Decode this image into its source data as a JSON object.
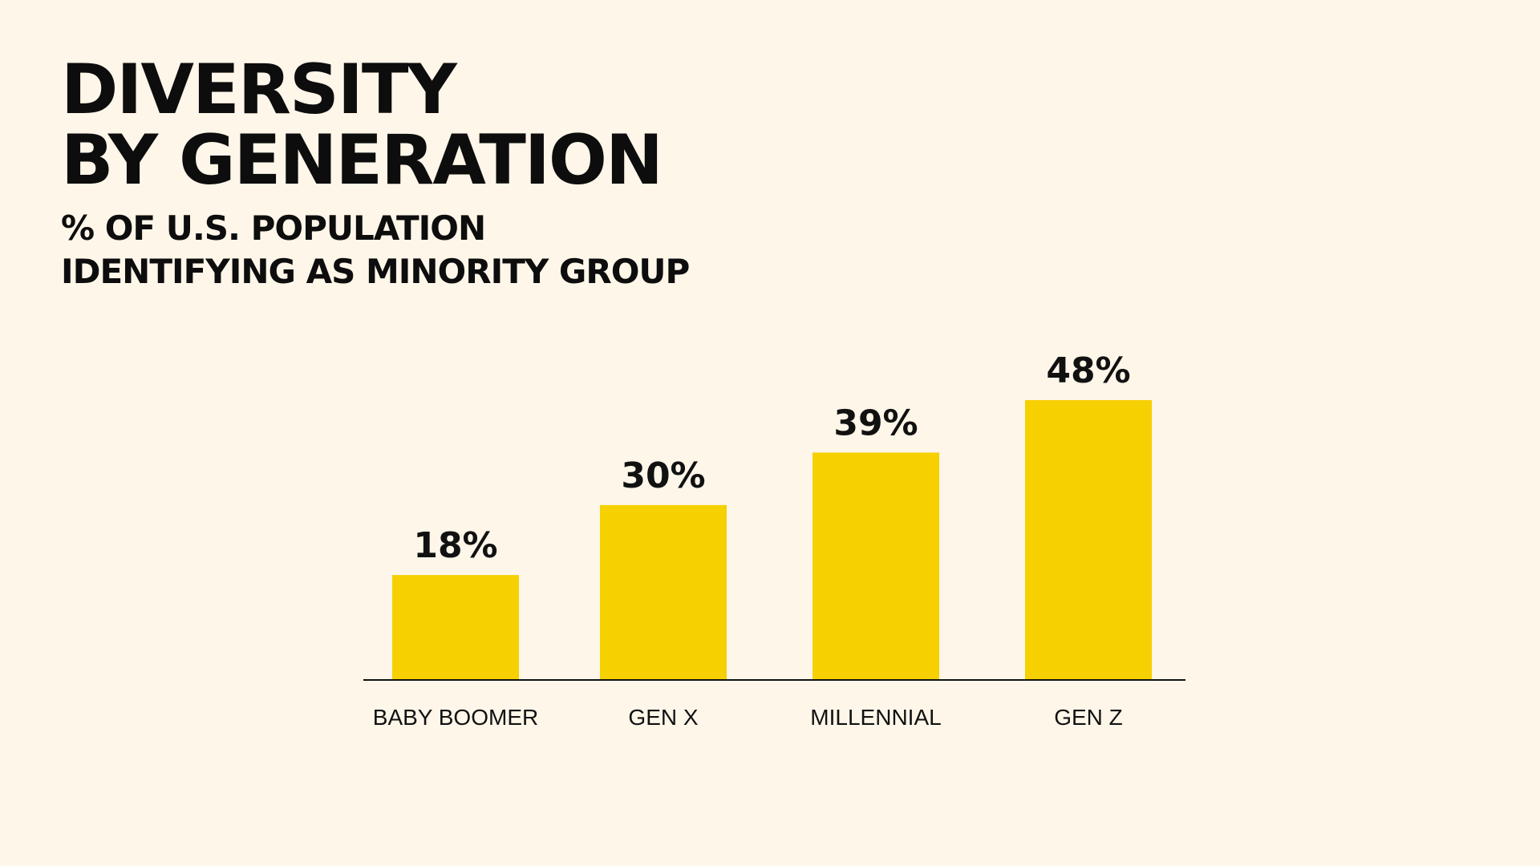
{
  "header": {
    "title_lines": [
      "DIVERSITY",
      "BY GENERATION"
    ],
    "subtitle_lines": [
      "% OF U.S. POPULATION",
      "IDENTIFYING AS MINORITY GROUP"
    ]
  },
  "colors": {
    "background": "#fdf6e9",
    "bar": "#f6d000",
    "text": "#111111",
    "axis": "#111111"
  },
  "chart_data": {
    "type": "bar",
    "title": "DIVERSITY BY GENERATION",
    "subtitle": "% OF U.S. POPULATION IDENTIFYING AS MINORITY GROUP",
    "categories": [
      "BABY BOOMER",
      "GEN X",
      "MILLENNIAL",
      "GEN Z"
    ],
    "values": [
      18,
      30,
      39,
      48
    ],
    "value_labels": [
      "18%",
      "30%",
      "39%",
      "48%"
    ],
    "xlabel": "",
    "ylabel": "",
    "ylim": [
      0,
      48
    ],
    "grid": false,
    "legend": "none"
  }
}
